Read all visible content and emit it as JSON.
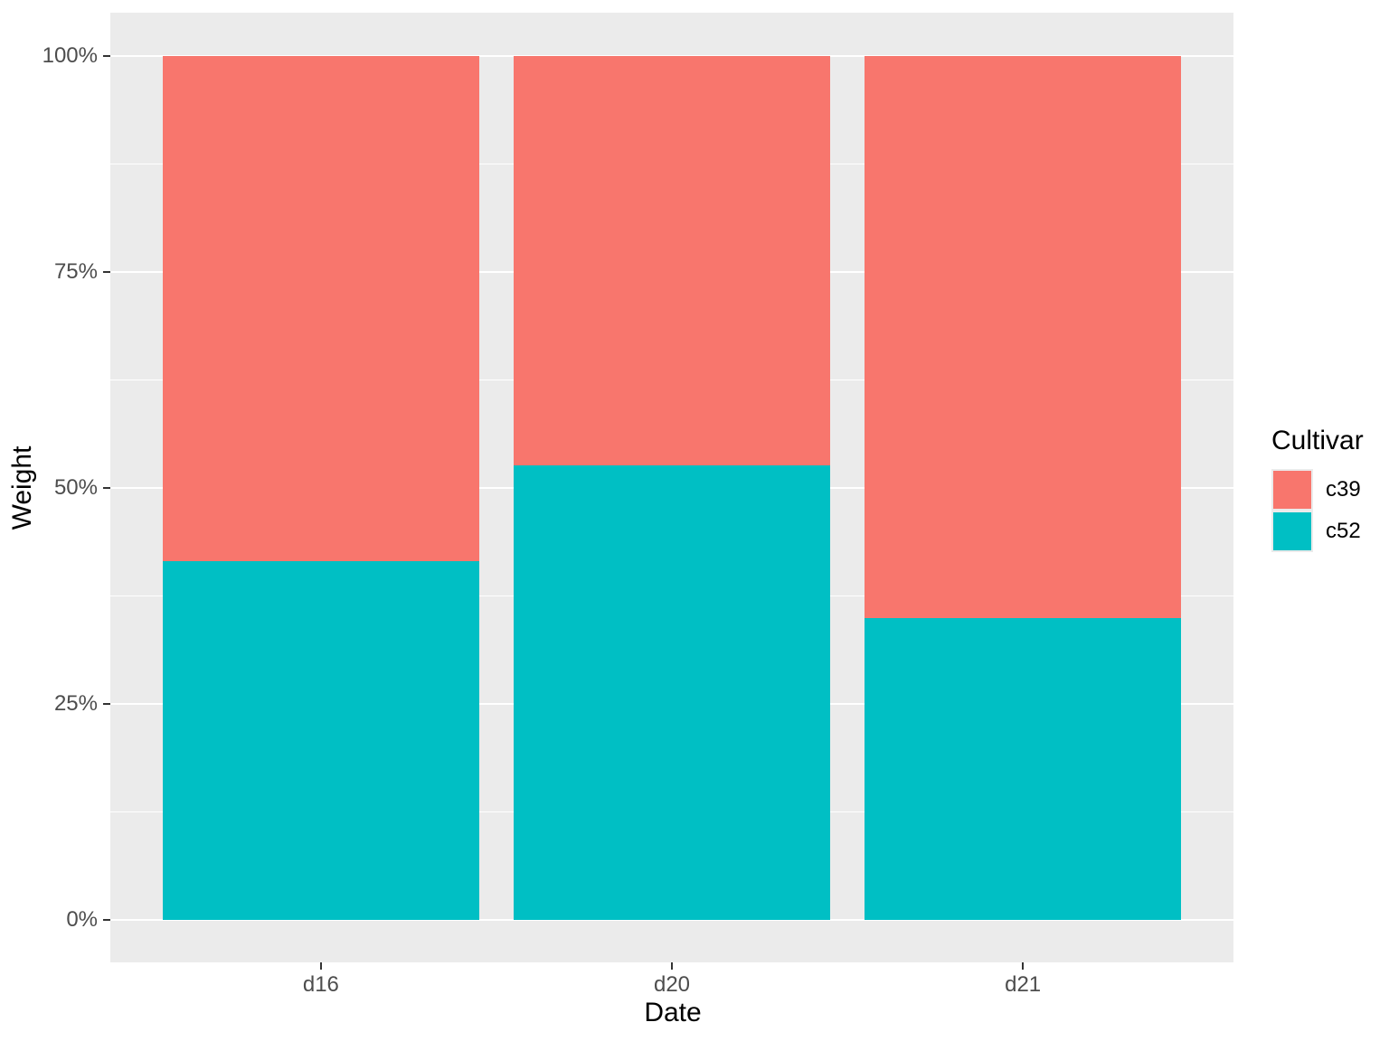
{
  "figure": {
    "background": "#FFFFFF",
    "panel_background": "#EBEBEB",
    "grid_color": "#FFFFFF",
    "tick_text_color": "#4D4D4D",
    "title_text_color": "#000000",
    "axis_tick_color": "#333333"
  },
  "chart_data": {
    "type": "bar",
    "subtype": "stacked-percent",
    "title": "",
    "xlabel": "Date",
    "ylabel": "Weight",
    "categories": [
      "d16",
      "d20",
      "d21"
    ],
    "series": [
      {
        "name": "c39",
        "color": "#F8766D",
        "fractions": [
          0.585,
          0.474,
          0.651
        ]
      },
      {
        "name": "c52",
        "color": "#00BFC4",
        "fractions": [
          0.415,
          0.526,
          0.349
        ]
      }
    ],
    "stack_order_bottom_to_top": [
      "c52",
      "c39"
    ],
    "y_ticks": [
      {
        "label": "0%",
        "value": 0
      },
      {
        "label": "25%",
        "value": 0.25
      },
      {
        "label": "50%",
        "value": 0.5
      },
      {
        "label": "75%",
        "value": 0.75
      },
      {
        "label": "100%",
        "value": 1
      }
    ],
    "ylim": [
      0,
      1
    ],
    "grid": "major+minor",
    "legend": {
      "title": "Cultivar",
      "position": "right",
      "entries": [
        {
          "label": "c39",
          "color": "#F8766D"
        },
        {
          "label": "c52",
          "color": "#00BFC4"
        }
      ]
    }
  }
}
